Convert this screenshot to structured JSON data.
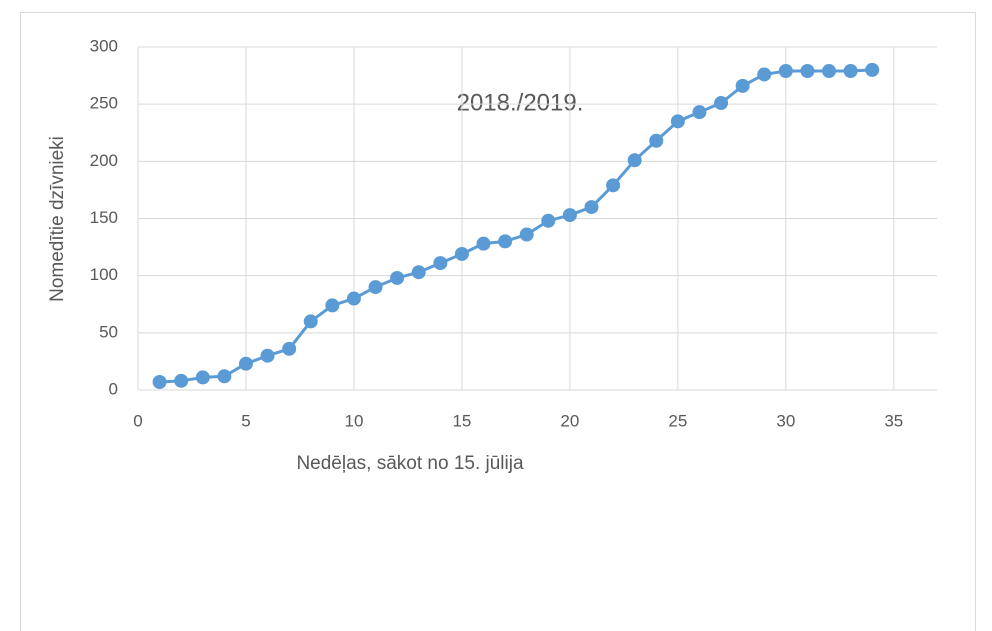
{
  "chart_data": {
    "type": "line",
    "title": "2018./2019.",
    "x_label": "Nedēļas, sākot no 15. jūlija",
    "y_label": "Nomedītie dzīvnieki",
    "x": [
      1,
      2,
      3,
      4,
      5,
      6,
      7,
      8,
      9,
      10,
      11,
      12,
      13,
      14,
      15,
      16,
      17,
      18,
      19,
      20,
      21,
      22,
      23,
      24,
      25,
      26,
      27,
      28,
      29,
      30,
      31,
      32,
      33,
      34
    ],
    "series": [
      {
        "name": "2018./2019.",
        "color": "#5b9bd5",
        "values": [
          7,
          8,
          11,
          12,
          23,
          30,
          36,
          60,
          74,
          80,
          90,
          98,
          103,
          111,
          119,
          128,
          130,
          136,
          148,
          153,
          160,
          179,
          201,
          218,
          235,
          243,
          251,
          266,
          276,
          279,
          279,
          279,
          279,
          280
        ]
      }
    ],
    "xlim": [
      0,
      37
    ],
    "xticks": [
      0,
      5,
      10,
      15,
      20,
      25,
      30,
      35
    ],
    "ylim": [
      0,
      300
    ],
    "yticks": [
      0,
      50,
      100,
      150,
      200,
      250,
      300
    ],
    "grid": true,
    "markers": true
  }
}
